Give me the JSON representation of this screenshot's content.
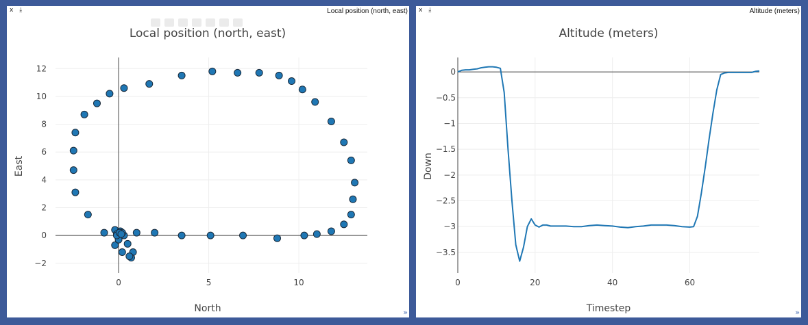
{
  "panels": {
    "left": {
      "close": "x",
      "download": "⤓",
      "caption": "Local position (north, east)",
      "corner": "»"
    },
    "right": {
      "close": "x",
      "download": "⤓",
      "caption": "Altitude (meters)",
      "corner": "»"
    }
  },
  "colors": {
    "marker": "#1f77b4",
    "marker_edge": "#1a2a3a",
    "line": "#1f77b4",
    "grid": "#eeeeee",
    "zero": "#444444"
  },
  "chart_data": [
    {
      "type": "scatter",
      "title": "Local position (north, east)",
      "xlabel": "North",
      "ylabel": "East",
      "xlim": [
        -3.5,
        13.8
      ],
      "ylim": [
        -2.7,
        12.8
      ],
      "xticks": [
        0,
        5,
        10
      ],
      "yticks": [
        -2,
        0,
        2,
        4,
        6,
        8,
        10,
        12
      ],
      "tick_labels_y": [
        "−2",
        "0",
        "2",
        "4",
        "6",
        "8",
        "10",
        "12"
      ],
      "tick_labels_x": [
        "0",
        "5",
        "10"
      ],
      "x": [
        0.3,
        -0.5,
        -1.2,
        -1.9,
        -2.4,
        -2.5,
        -2.5,
        -2.4,
        -1.7,
        1.7,
        3.5,
        5.2,
        6.6,
        7.8,
        8.9,
        9.6,
        10.2,
        10.9,
        11.8,
        12.5,
        12.9,
        13.1,
        13.0,
        12.9,
        12.5,
        11.8,
        11.0,
        10.3,
        8.8,
        6.9,
        5.1,
        3.5,
        2.0,
        1.0,
        0.3,
        -0.8,
        0.5,
        0.8,
        0.7,
        0.6,
        0.2,
        -0.2,
        -0.2,
        -0.1,
        0.0,
        0.1,
        0.2,
        -0.1,
        0.05,
        0.15
      ],
      "y": [
        10.6,
        10.2,
        9.5,
        8.7,
        7.4,
        6.1,
        4.7,
        3.1,
        1.5,
        10.9,
        11.5,
        11.8,
        11.7,
        11.7,
        11.5,
        11.1,
        10.5,
        9.6,
        8.2,
        6.7,
        5.4,
        3.8,
        2.6,
        1.5,
        0.8,
        0.3,
        0.1,
        0.0,
        -0.2,
        0.0,
        0.0,
        0.0,
        0.2,
        0.2,
        0.0,
        0.2,
        -0.6,
        -1.2,
        -1.6,
        -1.5,
        -1.2,
        -0.7,
        0.4,
        0.1,
        -0.3,
        0.3,
        0.2,
        0.0,
        0.2,
        0.1
      ]
    },
    {
      "type": "line",
      "title": "Altitude (meters)",
      "xlabel": "Timestep",
      "ylabel": "Down",
      "xlim": [
        0,
        78
      ],
      "ylim": [
        -3.9,
        0.28
      ],
      "xticks": [
        0,
        20,
        40,
        60
      ],
      "yticks": [
        0,
        -0.5,
        -1,
        -1.5,
        -2,
        -2.5,
        -3,
        -3.5
      ],
      "tick_labels_x": [
        "0",
        "20",
        "40",
        "60"
      ],
      "tick_labels_y": [
        "0",
        "−0.5",
        "−1",
        "−1.5",
        "−2",
        "−2.5",
        "−3",
        "−3.5"
      ],
      "x": [
        0,
        1,
        2,
        3,
        4,
        5,
        6,
        7,
        8,
        9,
        10,
        11,
        12,
        13,
        14,
        15,
        16,
        17,
        18,
        19,
        20,
        21,
        22,
        23,
        24,
        26,
        28,
        30,
        32,
        34,
        36,
        38,
        40,
        42,
        44,
        46,
        48,
        50,
        52,
        54,
        56,
        58,
        60,
        61,
        62,
        63,
        64,
        65,
        66,
        67,
        68,
        69,
        70,
        72,
        74,
        76,
        77,
        78
      ],
      "y": [
        0.0,
        0.03,
        0.04,
        0.04,
        0.05,
        0.06,
        0.08,
        0.09,
        0.1,
        0.1,
        0.09,
        0.07,
        -0.4,
        -1.5,
        -2.5,
        -3.35,
        -3.67,
        -3.4,
        -3.0,
        -2.85,
        -2.97,
        -3.01,
        -2.97,
        -2.97,
        -2.99,
        -2.99,
        -2.99,
        -3.0,
        -3.0,
        -2.98,
        -2.97,
        -2.98,
        -2.99,
        -3.01,
        -3.02,
        -3.0,
        -2.99,
        -2.97,
        -2.97,
        -2.97,
        -2.98,
        -3.0,
        -3.01,
        -3.0,
        -2.8,
        -2.35,
        -1.85,
        -1.3,
        -0.8,
        -0.35,
        -0.05,
        -0.02,
        -0.01,
        -0.01,
        -0.01,
        -0.01,
        0.01,
        0.02
      ]
    }
  ]
}
